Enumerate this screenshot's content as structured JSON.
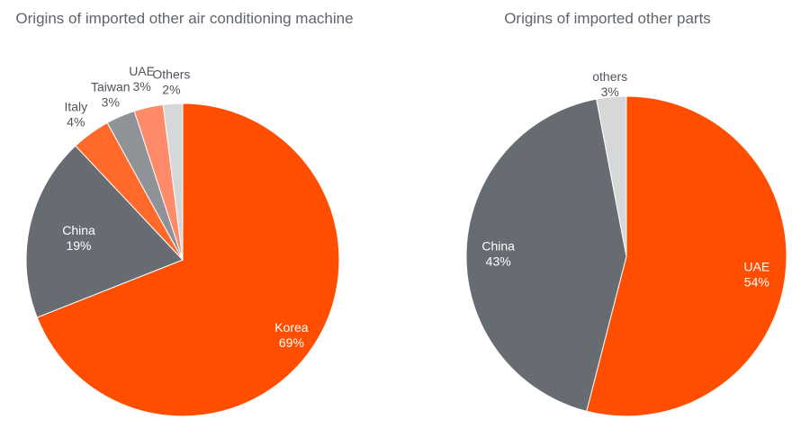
{
  "colors": {
    "orange": "#ff4e00",
    "dark_gray": "#676c72",
    "mid_orange": "#ff6a2b",
    "mid_gray": "#8f9398",
    "salmon": "#ff8a6a",
    "light_gray": "#d5d7d9",
    "title": "#5f646b",
    "label_dark": "#4f545a",
    "label_light": "#ffffff"
  },
  "chart_data": [
    {
      "type": "pie",
      "title": "Origins of imported other air conditioning machine",
      "slices": [
        {
          "label": "Korea",
          "value": 69,
          "value_label": "69%",
          "color": "#ff4e00",
          "label_inside": true
        },
        {
          "label": "China",
          "value": 19,
          "value_label": "19%",
          "color": "#676c72",
          "label_inside": true
        },
        {
          "label": "Italy",
          "value": 4,
          "value_label": "4%",
          "color": "#ff6a2b",
          "label_inside": false
        },
        {
          "label": "Taiwan",
          "value": 3,
          "value_label": "3%",
          "color": "#8f9398",
          "label_inside": false
        },
        {
          "label": "UAE",
          "value": 3,
          "value_label": "3%",
          "color": "#ff8a6a",
          "label_inside": false
        },
        {
          "label": "Others",
          "value": 2,
          "value_label": "2%",
          "color": "#d5d7d9",
          "label_inside": false
        }
      ]
    },
    {
      "type": "pie",
      "title": "Origins of imported other parts",
      "slices": [
        {
          "label": "UAE",
          "value": 54,
          "value_label": "54%",
          "color": "#ff4e00",
          "label_inside": true
        },
        {
          "label": "China",
          "value": 43,
          "value_label": "43%",
          "color": "#676c72",
          "label_inside": true
        },
        {
          "label": "others",
          "value": 3,
          "value_label": "3%",
          "color": "#d5d7d9",
          "label_inside": false
        }
      ]
    }
  ]
}
